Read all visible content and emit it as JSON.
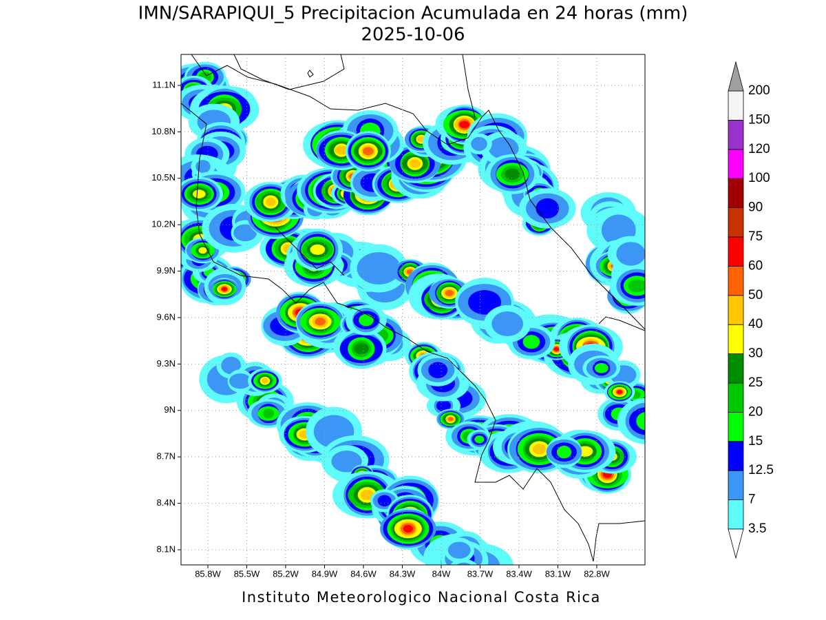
{
  "title": "IMN/SARAPIQUI_5 Precipitacion Acumulada en 24 horas (mm)",
  "subtitle": "2025-10-06",
  "map": {
    "lat_labels": [
      "11.1N",
      "10.8N",
      "10.5N",
      "10.2N",
      "9.9N",
      "9.6N",
      "9.3N",
      "9N",
      "8.7N",
      "8.4N",
      "8.1N"
    ],
    "lon_labels": [
      "85.8W",
      "85.5W",
      "85.2W",
      "84.9W",
      "84.6W",
      "84.3W",
      "84W",
      "83.7W",
      "83.4W",
      "83.1W",
      "82.8W"
    ]
  },
  "colorbar": {
    "levels": [
      3.5,
      7,
      12.5,
      15,
      20,
      25,
      30,
      40,
      50,
      60,
      75,
      90,
      100,
      120,
      150,
      200
    ],
    "colors": [
      "#5ffbfb",
      "#3c96f5",
      "#0000ff",
      "#00ff00",
      "#00c800",
      "#008c00",
      "#ffff00",
      "#ffc800",
      "#ff6400",
      "#ff0000",
      "#c83200",
      "#a00000",
      "#ff00ff",
      "#9933cc",
      "#f5f5f5"
    ],
    "below_color": "#ffffff",
    "above_color": "#a0a0a0"
  },
  "footer": "Instituto Meteorologico Nacional Costa Rica"
}
